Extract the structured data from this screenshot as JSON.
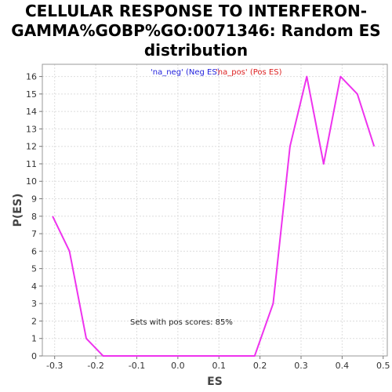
{
  "chart_data": {
    "type": "line",
    "title_lines": [
      "CELLULAR RESPONSE TO INTERFERON-",
      "GAMMA%GOBP%GO:0071346: Random ES",
      "distribution"
    ],
    "xlabel": "ES",
    "ylabel": "P(ES)",
    "xlim": [
      -0.33,
      0.51
    ],
    "ylim": [
      0,
      16.7
    ],
    "xticks": [
      -0.3,
      -0.2,
      -0.1,
      0.0,
      0.1,
      0.2,
      0.3,
      0.4,
      0.5
    ],
    "xtick_labels": [
      "-0.3",
      "-0.2",
      "-0.1",
      "0.0",
      "0.1",
      "0.2",
      "0.3",
      "0.4",
      "0.5"
    ],
    "yticks": [
      0,
      1,
      2,
      3,
      4,
      5,
      6,
      7,
      8,
      9,
      10,
      11,
      12,
      13,
      14,
      15,
      16
    ],
    "grid": true,
    "legend": [
      {
        "label": "'na_neg' (Neg ES)",
        "color": "#2222dd"
      },
      {
        "label": "'na_pos' (Pos ES)",
        "color": "#dd2222"
      }
    ],
    "legend_position": "top-center",
    "annotation": "Sets with pos scores: 85%",
    "line_color": "#ee33ee",
    "series": [
      {
        "x": [
          -0.305,
          -0.264,
          -0.223,
          -0.182,
          -0.141,
          -0.1,
          -0.059,
          -0.018,
          0.023,
          0.064,
          0.105,
          0.146,
          0.187,
          0.232,
          0.273,
          0.314,
          0.355,
          0.396,
          0.437,
          0.478
        ],
        "y": [
          8,
          6,
          1,
          0,
          0,
          0,
          0,
          0,
          0,
          0,
          0,
          0,
          0,
          3,
          12,
          16,
          11,
          16,
          15,
          12
        ]
      }
    ]
  }
}
